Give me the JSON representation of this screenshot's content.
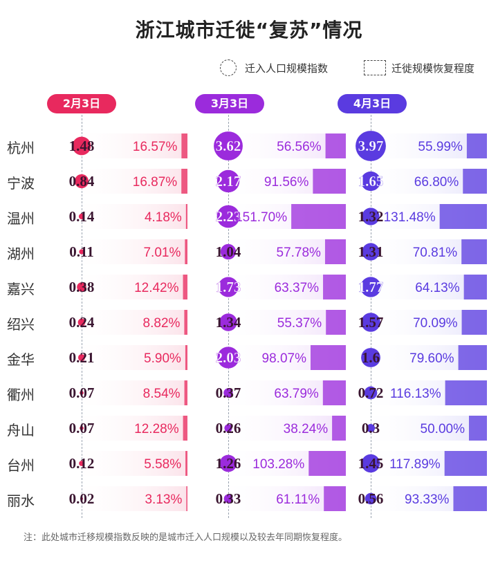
{
  "title": "浙江城市迁徙“复苏”情况",
  "legend": {
    "circle_label": "迁入人口规模指数",
    "rect_label": "迁徙规模恢复程度"
  },
  "periods": [
    {
      "label": "2月3日",
      "color": "#e8295e",
      "light": "#fbe3ea"
    },
    {
      "label": "3月3日",
      "color": "#9b2bdc",
      "light": "#f1e1fa"
    },
    {
      "label": "4月3日",
      "color": "#5a3be0",
      "light": "#e6e4fb"
    }
  ],
  "note": "注：此处城市迁移规模指数反映的是城市迁入人口规模以及较去年同期恢复程度。",
  "chart_data": {
    "type": "table",
    "title": "浙江城市迁徙“复苏”情况",
    "cities": [
      "杭州",
      "宁波",
      "温州",
      "湖州",
      "嘉兴",
      "绍兴",
      "金华",
      "衢州",
      "舟山",
      "台州",
      "丽水"
    ],
    "series": [
      {
        "name": "2月3日",
        "index": [
          "1.48",
          "0.84",
          "0.14",
          "0.11",
          "0.38",
          "0.24",
          "0.21",
          "0.07",
          "0.07",
          "0.12",
          "0.02"
        ],
        "recovery": [
          "16.57%",
          "16.87%",
          "4.18%",
          "7.01%",
          "12.42%",
          "8.82%",
          "5.90%",
          "8.54%",
          "12.28%",
          "5.58%",
          "3.13%"
        ]
      },
      {
        "name": "3月3日",
        "index": [
          "3.62",
          "2.17",
          "2.23",
          "1.04",
          "1.73",
          "1.34",
          "2.03",
          "0.37",
          "0.26",
          "1.26",
          "0.33"
        ],
        "recovery": [
          "56.56%",
          "91.56%",
          "151.70%",
          "57.78%",
          "63.37%",
          "55.37%",
          "98.07%",
          "63.79%",
          "38.24%",
          "103.28%",
          "61.11%"
        ]
      },
      {
        "name": "4月3日",
        "index": [
          "3.97",
          "1.65",
          "1.32",
          "1.31",
          "1.77",
          "1.57",
          "1.6",
          "0.72",
          "0.3",
          "1.45",
          "0.56"
        ],
        "recovery": [
          "55.99%",
          "66.80%",
          "131.48%",
          "70.81%",
          "64.13%",
          "70.09%",
          "79.60%",
          "116.13%",
          "50.00%",
          "117.89%",
          "93.33%"
        ]
      }
    ]
  }
}
